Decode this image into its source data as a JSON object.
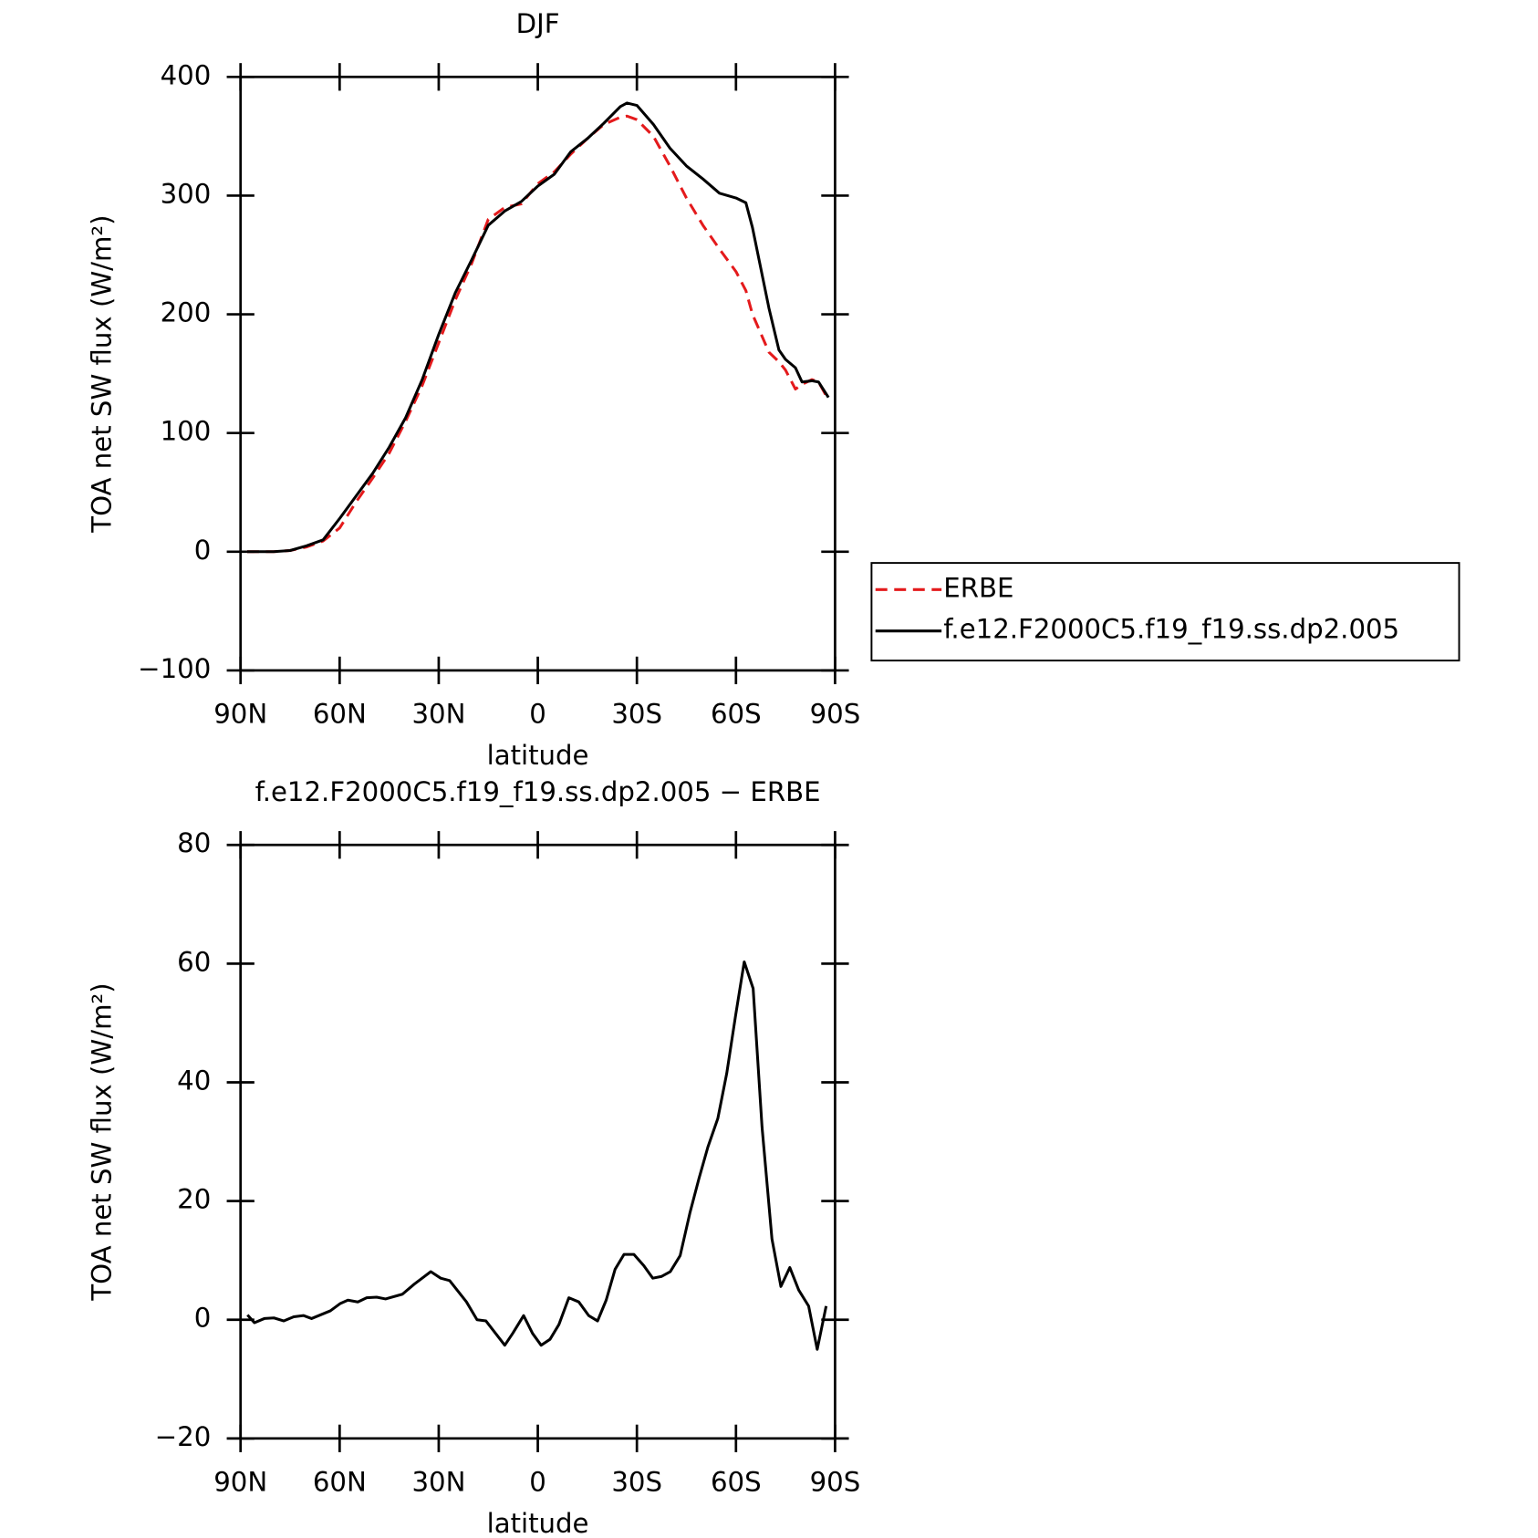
{
  "chart_data": [
    {
      "type": "line",
      "title": "DJF",
      "xlabel": "latitude",
      "ylabel": "TOA net SW flux (W/m²)",
      "x": [
        88,
        80,
        75,
        70,
        65,
        60,
        55,
        50,
        45,
        40,
        35,
        30,
        25,
        20,
        15,
        10,
        5,
        0,
        -5,
        -10,
        -15,
        -20,
        -25,
        -27,
        -30,
        -35,
        -40,
        -45,
        -50,
        -55,
        -60,
        -63,
        -65,
        -70,
        -73,
        -75,
        -78,
        -80,
        -83,
        -85,
        -88
      ],
      "series": [
        {
          "name": "ERBE",
          "color": "#e41a1c",
          "dashed": true,
          "values": [
            0,
            0,
            1,
            4,
            9,
            20,
            42,
            62,
            83,
            110,
            140,
            176,
            212,
            243,
            280,
            290,
            293,
            310,
            320,
            335,
            348,
            360,
            366,
            367,
            364,
            350,
            325,
            298,
            275,
            255,
            236,
            220,
            200,
            168,
            160,
            153,
            137,
            141,
            145,
            143,
            128
          ]
        },
        {
          "name": "f.e12.F2000C5.f19_f19.ss.dp2.005",
          "color": "#000000",
          "dashed": false,
          "values": [
            0,
            0,
            1,
            5,
            10,
            28,
            47,
            66,
            88,
            113,
            145,
            183,
            218,
            246,
            275,
            287,
            295,
            308,
            318,
            337,
            348,
            361,
            375,
            378,
            376,
            360,
            340,
            325,
            314,
            302,
            298,
            294,
            273,
            205,
            170,
            162,
            155,
            143,
            144,
            143,
            130
          ]
        }
      ],
      "xlim": [
        90,
        -90
      ],
      "xticks": [
        {
          "value": 90,
          "label": "90N"
        },
        {
          "value": 60,
          "label": "60N"
        },
        {
          "value": 30,
          "label": "30N"
        },
        0,
        {
          "value": -30,
          "label": "30S"
        },
        {
          "value": -60,
          "label": "60S"
        },
        {
          "value": -90,
          "label": "90S"
        }
      ],
      "ylim": [
        -100,
        400
      ],
      "yticks": [
        {
          "value": -100,
          "label": "−100"
        },
        0,
        100,
        200,
        300,
        400
      ],
      "legend_position": "right"
    },
    {
      "type": "line",
      "title": "f.e12.F2000C5.f19_f19.ss.dp2.005 − ERBE",
      "xlabel": "latitude",
      "ylabel": "TOA net SW flux (W/m²)",
      "x": [
        87.9,
        85.8,
        82.8,
        79.9,
        76.9,
        73.9,
        70.9,
        68.5,
        62.8,
        59.9,
        57.5,
        54.5,
        51.8,
        48.8,
        46.1,
        41.0,
        37.4,
        32.4,
        29.4,
        26.7,
        21.6,
        18.4,
        15.7,
        10.0,
        7.6,
        4.3,
        1.6,
        -1.0,
        -3.7,
        -6.4,
        -9.4,
        -12.4,
        -15.4,
        -18.1,
        -20.7,
        -23.4,
        -26.1,
        -29.1,
        -32.1,
        -34.8,
        -37.5,
        -40.1,
        -43.1,
        -46.1,
        -48.8,
        -51.5,
        -54.5,
        -57.2,
        -59.9,
        -62.5,
        -65.2,
        -67.9,
        -70.9,
        -73.6,
        -76.3,
        -79.0,
        -82.0,
        -84.6,
        -87.3
      ],
      "series": [
        {
          "color": "#000000",
          "dashed": false,
          "values": [
            0.8,
            -0.5,
            0.2,
            0.3,
            -0.2,
            0.5,
            0.7,
            0.2,
            1.5,
            2.7,
            3.3,
            3,
            3.7,
            3.8,
            3.5,
            4.3,
            6,
            8.1,
            7,
            6.6,
            3,
            0,
            -0.2,
            -4.3,
            -2.3,
            0.7,
            -2.3,
            -4.3,
            -3.3,
            -0.8,
            3.7,
            3,
            0.7,
            -0.2,
            3.3,
            8.5,
            11,
            11,
            9.1,
            7,
            7.3,
            8.1,
            10.8,
            18.1,
            23.8,
            29.1,
            33.9,
            41.5,
            51.3,
            60.3,
            55.8,
            32.4,
            13.6,
            5.6,
            8.8,
            5,
            2.3,
            -5,
            2.3
          ]
        }
      ],
      "xlim": [
        90,
        -90
      ],
      "xticks": [
        {
          "value": 90,
          "label": "90N"
        },
        {
          "value": 60,
          "label": "60N"
        },
        {
          "value": 30,
          "label": "30N"
        },
        0,
        {
          "value": -30,
          "label": "30S"
        },
        {
          "value": -60,
          "label": "60S"
        },
        {
          "value": -90,
          "label": "90S"
        }
      ],
      "ylim": [
        -20,
        80
      ],
      "yticks": [
        {
          "value": -20,
          "label": "−20"
        },
        0,
        20,
        40,
        60,
        80
      ]
    }
  ]
}
